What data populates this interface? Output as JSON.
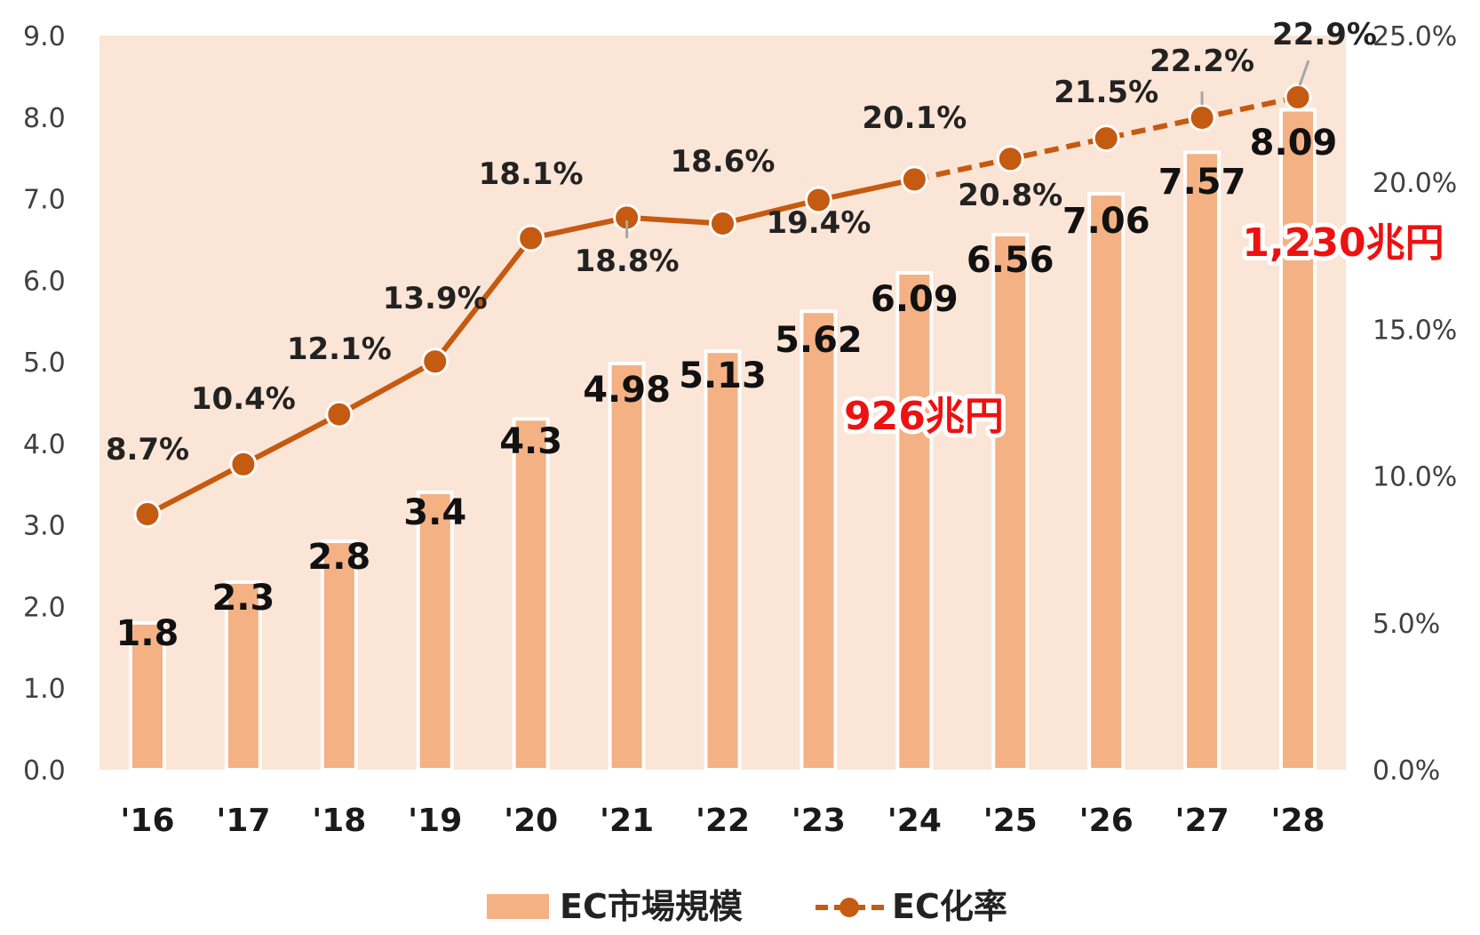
{
  "chart_data": {
    "type": "bar",
    "categories": [
      "'16",
      "'17",
      "'18",
      "'19",
      "'20",
      "'21",
      "'22",
      "'23",
      "'24",
      "'25",
      "'26",
      "'27",
      "'28"
    ],
    "series": [
      {
        "name": "EC市場規模",
        "type": "bar",
        "axis": "left",
        "values": [
          1.8,
          2.3,
          2.8,
          3.4,
          4.3,
          4.98,
          5.13,
          5.62,
          6.09,
          6.56,
          7.06,
          7.57,
          8.09
        ],
        "labels": [
          "1.8",
          "2.3",
          "2.8",
          "3.4",
          "4.3",
          "4.98",
          "5.13",
          "5.62",
          "6.09",
          "6.56",
          "7.06",
          "7.57",
          "8.09"
        ],
        "color": "#f4b183"
      },
      {
        "name": "EC化率",
        "type": "line",
        "axis": "right",
        "values": [
          8.7,
          10.4,
          12.1,
          13.9,
          18.1,
          18.8,
          18.6,
          19.4,
          20.1,
          20.8,
          21.5,
          22.2,
          22.9
        ],
        "labels": [
          "8.7%",
          "10.4%",
          "12.1%",
          "13.9%",
          "18.1%",
          "18.8%",
          "18.6%",
          "19.4%",
          "20.1%",
          "20.8%",
          "21.5%",
          "22.2%",
          "22.9%"
        ],
        "actual_until_index": 8,
        "color": "#c55a11"
      }
    ],
    "y_left": {
      "ticks": [
        "0.0",
        "1.0",
        "2.0",
        "3.0",
        "4.0",
        "5.0",
        "6.0",
        "7.0",
        "8.0",
        "9.0"
      ],
      "ylim": [
        0,
        9
      ]
    },
    "y_right": {
      "ticks": [
        "0.0%",
        "5.0%",
        "10.0%",
        "15.0%",
        "20.0%",
        "25.0%"
      ],
      "ylim": [
        0,
        25
      ]
    },
    "annotations": [
      {
        "text": "926兆円",
        "category_index": 8
      },
      {
        "text": "1,230兆円",
        "category_index": 12
      }
    ],
    "plot_background": "#fbe5d6",
    "grid": false,
    "legend_position": "bottom"
  }
}
